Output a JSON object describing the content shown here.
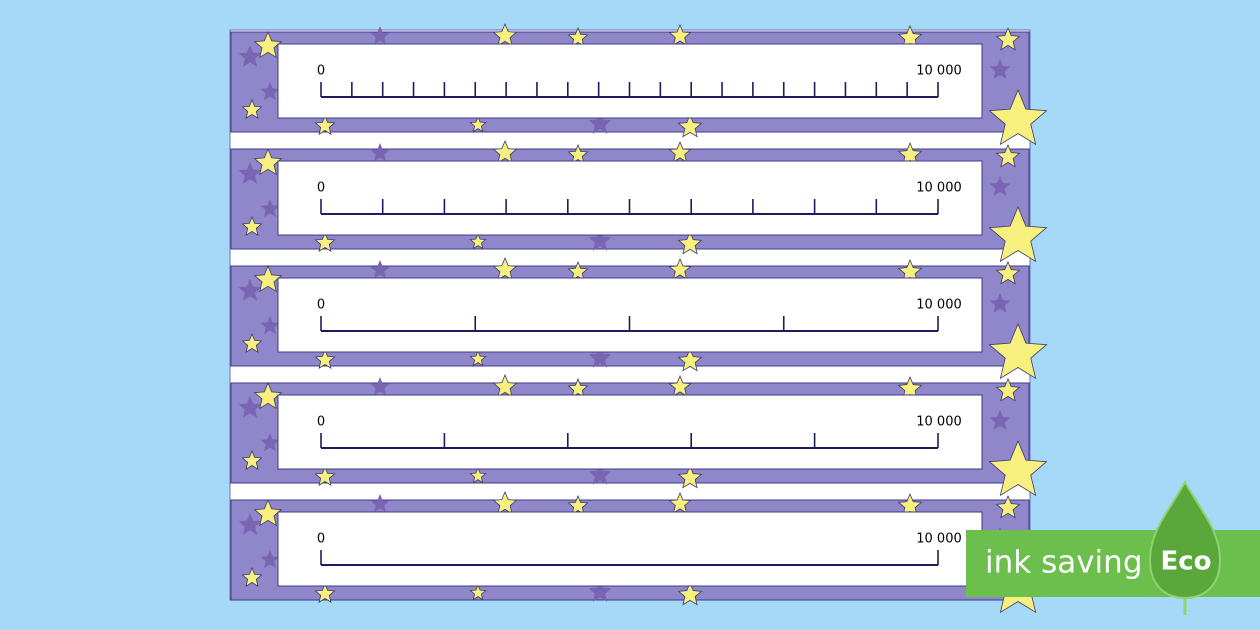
{
  "strips": [
    {
      "start_label": "0",
      "end_label": "10 000",
      "divisions": 20
    },
    {
      "start_label": "0",
      "end_label": "10 000",
      "divisions": 10
    },
    {
      "start_label": "0",
      "end_label": "10 000",
      "divisions": 4
    },
    {
      "start_label": "0",
      "end_label": "10 000",
      "divisions": 5
    },
    {
      "start_label": "0",
      "end_label": "10 000",
      "divisions": 1
    }
  ],
  "badge": {
    "text": "ink saving",
    "logo": "Eco"
  }
}
